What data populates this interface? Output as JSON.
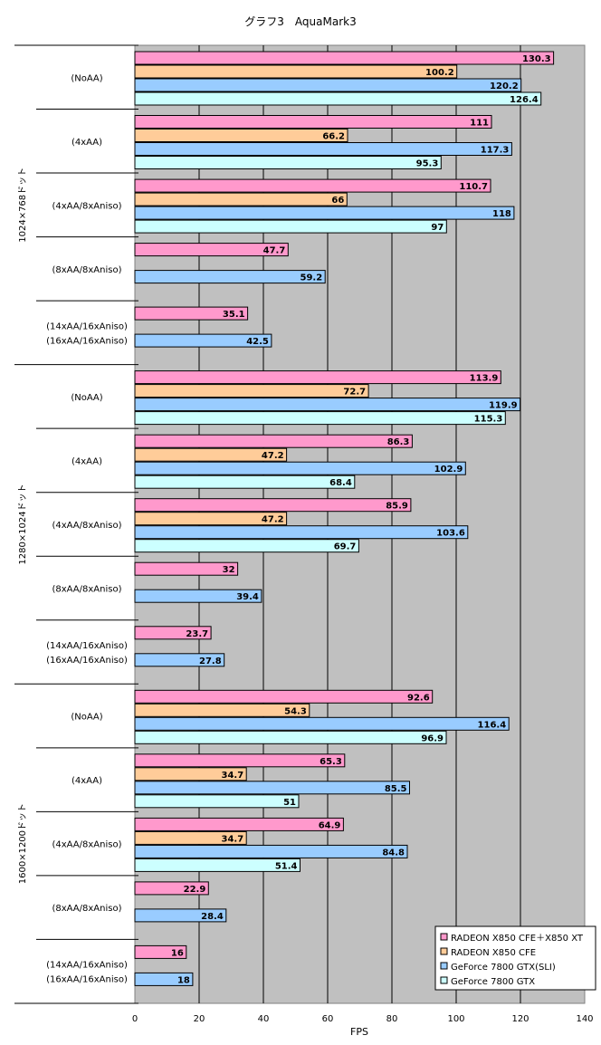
{
  "chart_data": {
    "type": "bar",
    "orientation": "horizontal",
    "title": "グラフ3　AquaMark3",
    "xlabel": "FPS",
    "xlim": [
      0,
      140
    ],
    "xticks": [
      0,
      20,
      40,
      60,
      80,
      100,
      120,
      140
    ],
    "grid": true,
    "legend_position": "bottom-right",
    "series": [
      {
        "name": "RADEON X850 CFE＋X850 XT",
        "color": "#FF99CC"
      },
      {
        "name": "RADEON X850 CFE",
        "color": "#FFCC99"
      },
      {
        "name": "GeForce 7800 GTX(SLI)",
        "color": "#99CCFF"
      },
      {
        "name": "GeForce 7800 GTX",
        "color": "#CCFFFF"
      }
    ],
    "groups": [
      {
        "label": "1024×768ドット",
        "categories": [
          {
            "lines": [
              "(NoAA)"
            ],
            "values": [
              130.3,
              100.2,
              120.2,
              126.4
            ]
          },
          {
            "lines": [
              "(4xAA)"
            ],
            "values": [
              111.0,
              66.2,
              117.3,
              95.3
            ]
          },
          {
            "lines": [
              "(4xAA/8xAniso)"
            ],
            "values": [
              110.7,
              66.0,
              118.0,
              97.0
            ]
          },
          {
            "lines": [
              "(8xAA/8xAniso)"
            ],
            "values": [
              47.7,
              null,
              59.2,
              null
            ]
          },
          {
            "lines": [
              "(14xAA/16xAniso)",
              "(16xAA/16xAniso)"
            ],
            "values": [
              35.1,
              null,
              42.5,
              null
            ]
          }
        ]
      },
      {
        "label": "1280×1024ドット",
        "categories": [
          {
            "lines": [
              "(NoAA)"
            ],
            "values": [
              113.9,
              72.7,
              119.9,
              115.3
            ]
          },
          {
            "lines": [
              "(4xAA)"
            ],
            "values": [
              86.3,
              47.2,
              102.9,
              68.4
            ]
          },
          {
            "lines": [
              "(4xAA/8xAniso)"
            ],
            "values": [
              85.9,
              47.2,
              103.6,
              69.7
            ]
          },
          {
            "lines": [
              "(8xAA/8xAniso)"
            ],
            "values": [
              32.0,
              null,
              39.4,
              null
            ]
          },
          {
            "lines": [
              "(14xAA/16xAniso)",
              "(16xAA/16xAniso)"
            ],
            "values": [
              23.7,
              null,
              27.8,
              null
            ]
          }
        ]
      },
      {
        "label": "1600×1200ドット",
        "categories": [
          {
            "lines": [
              "(NoAA)"
            ],
            "values": [
              92.6,
              54.3,
              116.4,
              96.9
            ]
          },
          {
            "lines": [
              "(4xAA)"
            ],
            "values": [
              65.3,
              34.7,
              85.5,
              51.0
            ]
          },
          {
            "lines": [
              "(4xAA/8xAniso)"
            ],
            "values": [
              64.9,
              34.7,
              84.8,
              51.4
            ]
          },
          {
            "lines": [
              "(8xAA/8xAniso)"
            ],
            "values": [
              22.9,
              null,
              28.4,
              null
            ]
          },
          {
            "lines": [
              "(14xAA/16xAniso)",
              "(16xAA/16xAniso)"
            ],
            "values": [
              16.0,
              null,
              18.0,
              null
            ]
          }
        ]
      }
    ]
  }
}
